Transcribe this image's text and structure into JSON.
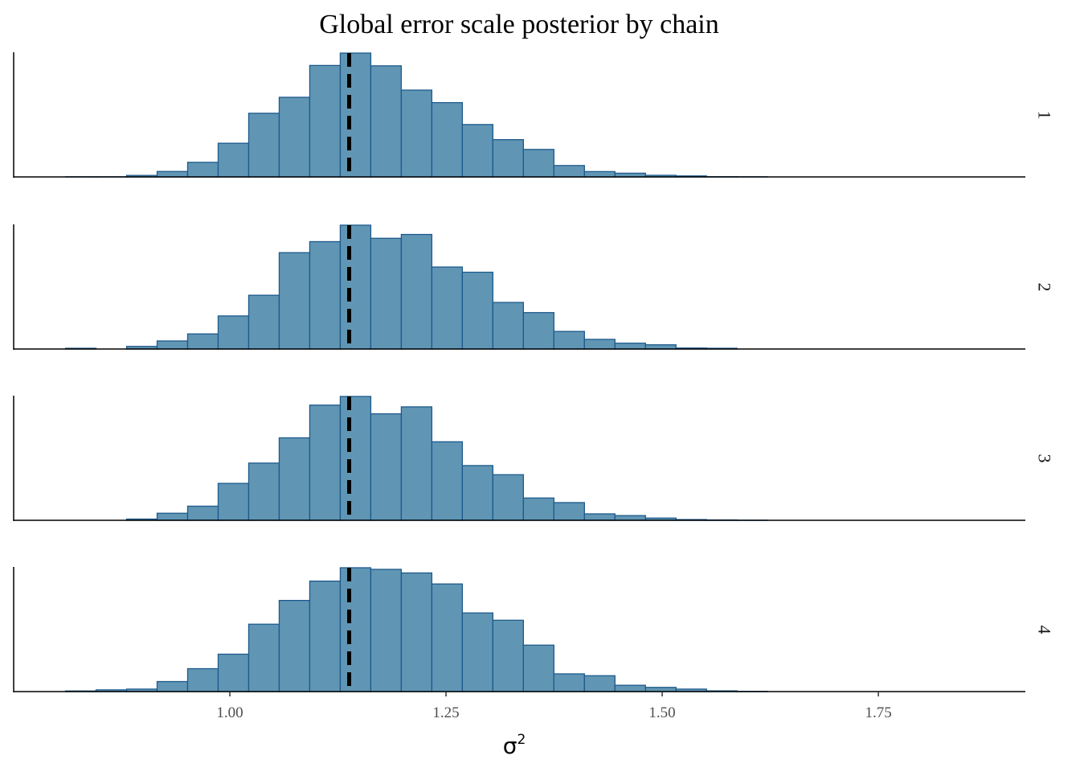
{
  "chart_data": {
    "type": "bar",
    "title": "Global error scale posterior by chain",
    "xlabel": "σ",
    "xlabel_superscript": "2",
    "ylabel": "",
    "xlim": [
      0.75,
      1.92
    ],
    "x_ticks": [
      1.0,
      1.25,
      1.5,
      1.75
    ],
    "x_tick_labels": [
      "1.00",
      "1.25",
      "1.50",
      "1.75"
    ],
    "reference_line": {
      "value": 1.138,
      "style": "dashed",
      "color": "#000000"
    },
    "bin_start": 0.81,
    "bin_width": 0.0353,
    "bar_fill": "#6096b4",
    "bar_stroke": "#1e5a8c",
    "grid": false,
    "legend": "none",
    "facet_direction": "rows",
    "series": [
      {
        "name": "1",
        "values": [
          1,
          1,
          12,
          44,
          118,
          272,
          514,
          643,
          900,
          1000,
          897,
          701,
          600,
          423,
          301,
          222,
          92,
          43,
          30,
          13,
          8,
          2,
          1,
          0,
          0,
          0,
          0,
          0,
          0,
          0,
          0,
          0,
          0,
          0,
          1
        ]
      },
      {
        "name": "2",
        "values": [
          6,
          0,
          21,
          65,
          122,
          267,
          434,
          778,
          867,
          1000,
          894,
          925,
          662,
          620,
          376,
          294,
          142,
          78,
          47,
          34,
          8,
          6,
          0,
          0,
          0,
          0,
          0,
          0,
          0,
          0,
          0,
          0,
          0,
          0,
          1
        ]
      },
      {
        "name": "3",
        "values": [
          0,
          0,
          10,
          57,
          114,
          298,
          462,
          666,
          930,
          1000,
          860,
          916,
          634,
          442,
          368,
          180,
          143,
          52,
          38,
          18,
          6,
          3,
          1,
          0,
          0,
          0,
          0,
          0,
          0,
          0,
          0,
          0,
          0,
          0,
          2
        ]
      },
      {
        "name": "4",
        "values": [
          5,
          14,
          20,
          81,
          185,
          302,
          544,
          736,
          892,
          1000,
          987,
          958,
          869,
          635,
          576,
          375,
          143,
          128,
          51,
          34,
          20,
          6,
          2,
          0,
          0,
          0,
          0,
          0,
          0,
          0,
          0,
          0,
          0,
          0,
          0
        ]
      }
    ]
  }
}
